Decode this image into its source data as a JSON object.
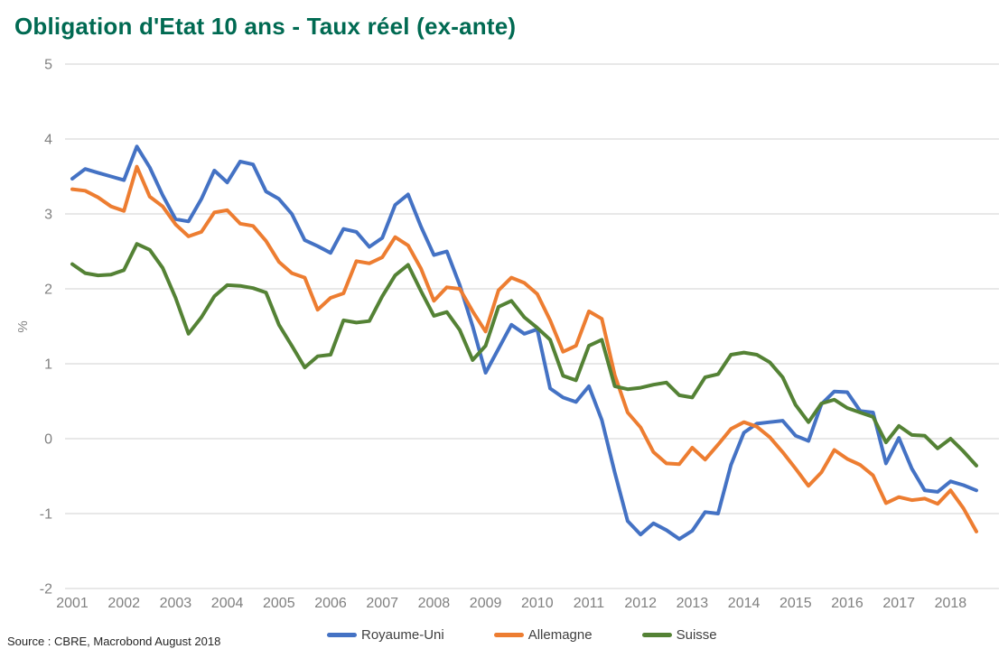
{
  "title": "Obligation d'Etat 10 ans - Taux réel (ex-ante)",
  "source": "Source : CBRE, Macrobond August 2018",
  "colors": {
    "title": "#006A52",
    "royaume_uni": "#4472C4",
    "allemagne": "#ED7D31",
    "suisse": "#548235",
    "grid": "#D9D9D9",
    "axis_text": "#808080",
    "legend_text": "#404040"
  },
  "legend": [
    {
      "label": "Royaume-Uni",
      "color": "#4472C4"
    },
    {
      "label": "Allemagne",
      "color": "#ED7D31"
    },
    {
      "label": "Suisse",
      "color": "#548235"
    }
  ],
  "chart_data": {
    "type": "line",
    "title": "Obligation d'Etat 10 ans - Taux réel (ex-ante)",
    "xlabel": "",
    "ylabel": "%",
    "ylim": [
      -2,
      5
    ],
    "y_ticks": [
      5,
      4,
      3,
      2,
      1,
      0,
      -1,
      -2
    ],
    "grid": "horizontal",
    "legend_position": "bottom",
    "x_unit": "quarterly",
    "x_start": "2001Q1",
    "x_end": "2018Q3",
    "x_labels": [
      "2001",
      "2002",
      "2003",
      "2004",
      "2005",
      "2006",
      "2007",
      "2008",
      "2009",
      "2010",
      "2011",
      "2012",
      "2013",
      "2014",
      "2015",
      "2016",
      "2017",
      "2018"
    ],
    "series": [
      {
        "name": "Royaume-Uni",
        "color": "#4472C4",
        "values": [
          3.47,
          3.6,
          3.55,
          3.5,
          3.45,
          3.9,
          3.62,
          3.25,
          2.93,
          2.9,
          3.2,
          3.58,
          3.42,
          3.7,
          3.66,
          3.3,
          3.2,
          3.0,
          2.65,
          2.57,
          2.48,
          2.8,
          2.76,
          2.56,
          2.68,
          3.12,
          3.26,
          2.83,
          2.45,
          2.5,
          2.05,
          1.5,
          0.88,
          1.2,
          1.52,
          1.4,
          1.46,
          0.67,
          0.55,
          0.49,
          0.7,
          0.25,
          -0.45,
          -1.1,
          -1.28,
          -1.13,
          -1.22,
          -1.34,
          -1.23,
          -0.98,
          -1.0,
          -0.35,
          0.08,
          0.2,
          0.22,
          0.24,
          0.04,
          -0.03,
          0.46,
          0.63,
          0.62,
          0.37,
          0.35,
          -0.33,
          0.01,
          -0.4,
          -0.69,
          -0.71,
          -0.57,
          -0.62,
          -0.69
        ]
      },
      {
        "name": "Allemagne",
        "color": "#ED7D31",
        "values": [
          3.33,
          3.31,
          3.22,
          3.1,
          3.04,
          3.63,
          3.23,
          3.1,
          2.86,
          2.7,
          2.76,
          3.02,
          3.05,
          2.87,
          2.84,
          2.64,
          2.36,
          2.21,
          2.15,
          1.72,
          1.88,
          1.94,
          2.37,
          2.34,
          2.42,
          2.69,
          2.58,
          2.27,
          1.84,
          2.02,
          2.0,
          1.7,
          1.43,
          1.98,
          2.15,
          2.08,
          1.93,
          1.58,
          1.16,
          1.24,
          1.7,
          1.6,
          0.85,
          0.35,
          0.15,
          -0.18,
          -0.33,
          -0.34,
          -0.12,
          -0.28,
          -0.08,
          0.13,
          0.22,
          0.16,
          0.02,
          -0.18,
          -0.4,
          -0.63,
          -0.45,
          -0.15,
          -0.27,
          -0.35,
          -0.49,
          -0.86,
          -0.78,
          -0.82,
          -0.8,
          -0.87,
          -0.69,
          -0.93,
          -1.24
        ]
      },
      {
        "name": "Suisse",
        "color": "#548235",
        "values": [
          2.33,
          2.21,
          2.18,
          2.19,
          2.25,
          2.6,
          2.52,
          2.28,
          1.88,
          1.4,
          1.62,
          1.9,
          2.05,
          2.04,
          2.01,
          1.95,
          1.52,
          1.24,
          0.95,
          1.1,
          1.12,
          1.58,
          1.55,
          1.57,
          1.9,
          2.18,
          2.32,
          1.97,
          1.64,
          1.69,
          1.45,
          1.05,
          1.24,
          1.76,
          1.84,
          1.62,
          1.48,
          1.32,
          0.84,
          0.78,
          1.24,
          1.32,
          0.7,
          0.66,
          0.68,
          0.72,
          0.75,
          0.58,
          0.55,
          0.82,
          0.86,
          1.12,
          1.15,
          1.12,
          1.02,
          0.82,
          0.45,
          0.22,
          0.47,
          0.52,
          0.41,
          0.35,
          0.29,
          -0.05,
          0.17,
          0.05,
          0.04,
          -0.13,
          0.0,
          -0.17,
          -0.36
        ]
      }
    ]
  }
}
